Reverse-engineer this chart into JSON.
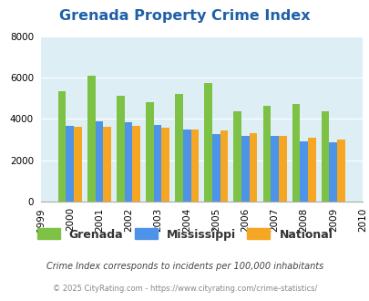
{
  "title": "Grenada Property Crime Index",
  "title_color": "#2060a8",
  "years": [
    1999,
    2000,
    2001,
    2002,
    2003,
    2004,
    2005,
    2006,
    2007,
    2008,
    2009,
    2010
  ],
  "data_years": [
    2000,
    2001,
    2002,
    2003,
    2004,
    2005,
    2006,
    2007,
    2008,
    2009
  ],
  "grenada": [
    5350,
    6070,
    5100,
    4800,
    5200,
    5720,
    4380,
    4620,
    4740,
    4360
  ],
  "mississippi": [
    3660,
    3870,
    3820,
    3720,
    3480,
    3280,
    3170,
    3160,
    2920,
    2890
  ],
  "national": [
    3620,
    3640,
    3660,
    3590,
    3500,
    3430,
    3290,
    3200,
    3100,
    3000
  ],
  "grenada_color": "#7dc244",
  "mississippi_color": "#4d94e8",
  "national_color": "#f5a623",
  "background_color": "#ddeef5",
  "ylim": [
    0,
    8000
  ],
  "yticks": [
    0,
    2000,
    4000,
    6000,
    8000
  ],
  "footer_line1": "Crime Index corresponds to incidents per 100,000 inhabitants",
  "footer_line2": "© 2025 CityRating.com - https://www.cityrating.com/crime-statistics/",
  "footer_color1": "#444444",
  "footer_color2": "#888888",
  "legend_labels": [
    "Grenada",
    "Mississippi",
    "National"
  ],
  "bar_width": 0.27
}
